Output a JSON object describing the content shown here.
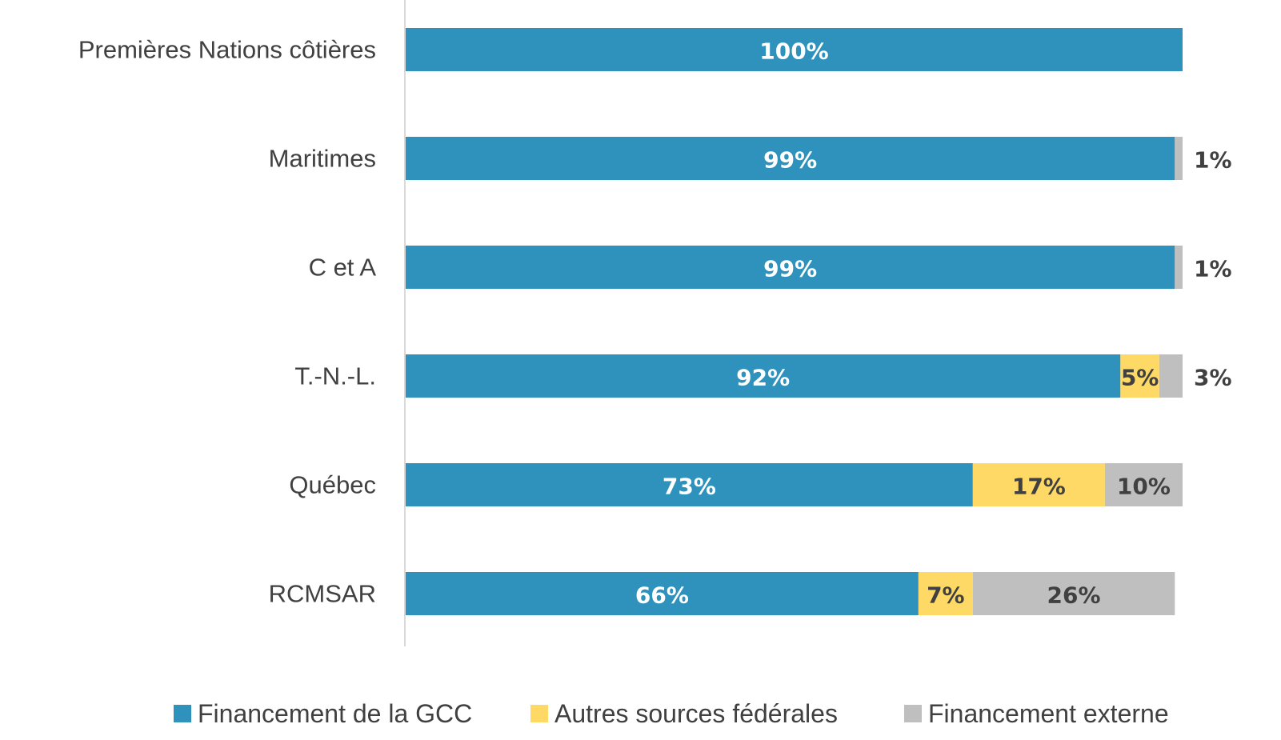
{
  "chart_data": {
    "type": "bar",
    "orientation": "horizontal",
    "stacked": true,
    "percent": true,
    "categories": [
      "Premières Nations côtières",
      "Maritimes",
      "C et A",
      "T.-N.-L.",
      "Québec",
      "RCMSAR"
    ],
    "series": [
      {
        "name": "Financement de la GCC",
        "color": "#2e92bc",
        "values": [
          100,
          99,
          99,
          92,
          73,
          66
        ],
        "labels": [
          "100%",
          "99%",
          "99%",
          "92%",
          "73%",
          "66%"
        ]
      },
      {
        "name": "Autres sources fédérales",
        "color": "#ffd966",
        "values": [
          0,
          0,
          0,
          5,
          17,
          7
        ],
        "labels": [
          "",
          "",
          "",
          "5%",
          "17%",
          "7%"
        ]
      },
      {
        "name": "Financement externe",
        "color": "#bfbfbf",
        "values": [
          0,
          1,
          1,
          3,
          10,
          26
        ],
        "labels": [
          "",
          "1%",
          "1%",
          "3%",
          "10%",
          "26%"
        ]
      }
    ],
    "xlim": [
      0,
      100
    ],
    "title": "",
    "xlabel": "",
    "ylabel": "",
    "grid": false,
    "legend_position": "bottom",
    "label_colors": {
      "on_primary": "#ffffff",
      "on_secondary": "#404040"
    }
  }
}
